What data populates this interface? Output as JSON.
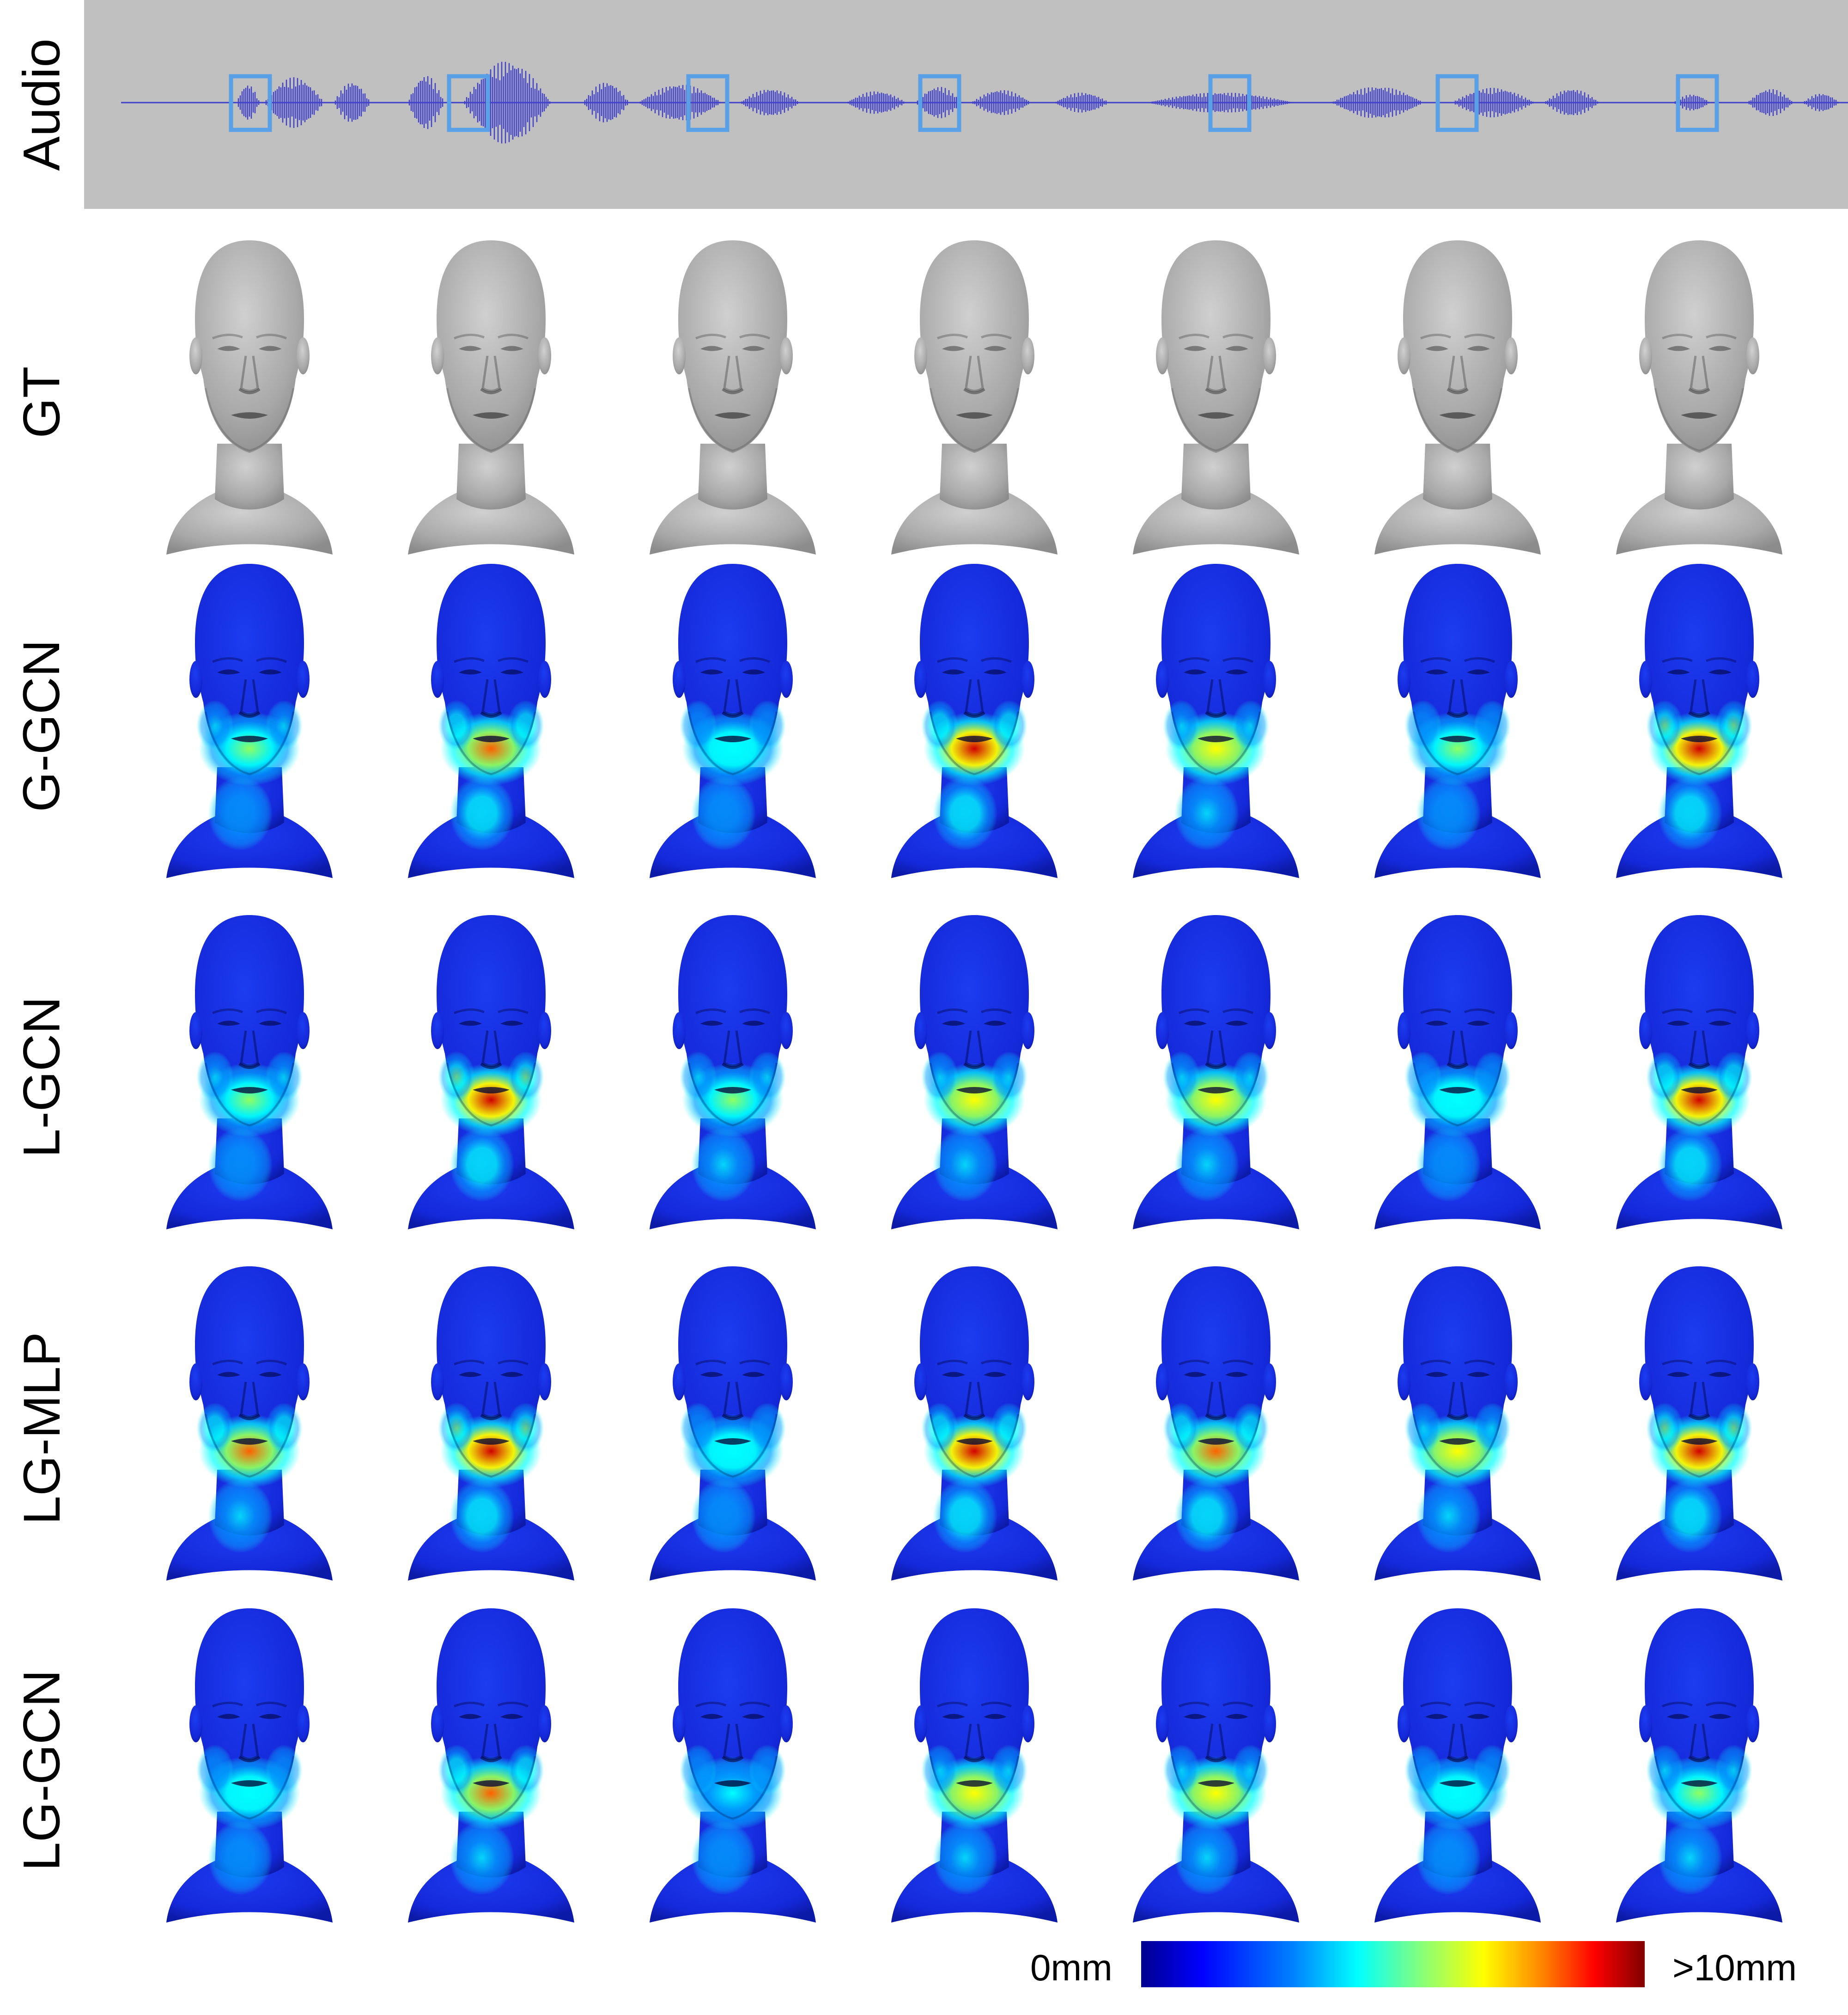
{
  "rows": [
    {
      "id": "audio",
      "label": "Audio"
    },
    {
      "id": "gt",
      "label": "GT"
    },
    {
      "id": "g-gcn",
      "label": "G-GCN"
    },
    {
      "id": "l-gcn",
      "label": "L-GCN"
    },
    {
      "id": "lg-mlp",
      "label": "LG-MLP"
    },
    {
      "id": "lg-gcn",
      "label": "LG-GCN"
    }
  ],
  "columns_count": 7,
  "colorbar": {
    "min_label": "0mm",
    "max_label": ">10mm",
    "colormap": "jet"
  },
  "colors": {
    "audio_background": "#c0c0c0",
    "waveform": "#4040c8",
    "marker_box": "#5aa0e6",
    "gt_mesh": "#a8a8a8",
    "error_base": "#1428e0"
  },
  "error_intensity": {
    "g-gcn": [
      0.55,
      0.85,
      0.4,
      0.9,
      0.7,
      0.5,
      0.95
    ],
    "l-gcn": [
      0.55,
      1.0,
      0.6,
      0.65,
      0.7,
      0.45,
      0.9
    ],
    "lg-mlp": [
      0.75,
      1.0,
      0.45,
      0.9,
      0.85,
      0.65,
      1.0
    ],
    "lg-gcn": [
      0.4,
      0.75,
      0.3,
      0.7,
      0.7,
      0.4,
      0.6
    ]
  }
}
